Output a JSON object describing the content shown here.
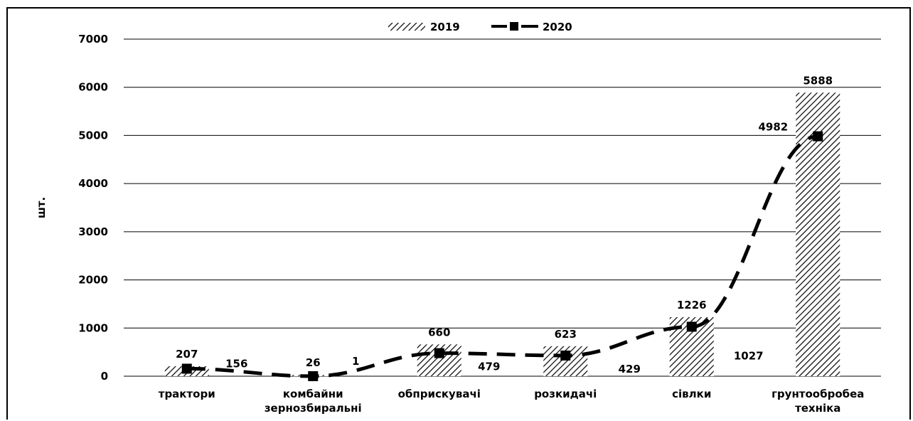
{
  "chart_data": {
    "type": "bar",
    "categories": [
      [
        "трактори"
      ],
      [
        "комбайни",
        "зернозбиральні"
      ],
      [
        "обприскувачі"
      ],
      [
        "розкидачі"
      ],
      [
        "сівлки"
      ],
      [
        "грунтообробеа",
        "техніка"
      ]
    ],
    "series": [
      {
        "name": "2019",
        "type": "bar",
        "pattern": "hatched",
        "values": [
          207,
          26,
          660,
          623,
          1226,
          5888
        ]
      },
      {
        "name": "2020",
        "type": "line",
        "style": "dashed",
        "marker": "square",
        "values": [
          156,
          1,
          479,
          429,
          1027,
          4982
        ]
      }
    ],
    "ylabel": "шт.",
    "xlabel": "",
    "ylim": [
      0,
      7000
    ],
    "yticks": [
      0,
      1000,
      2000,
      3000,
      4000,
      5000,
      6000,
      7000
    ],
    "grid": true,
    "legend": "top-center",
    "colors": {
      "bar_hatch": "#000000",
      "line": "#000000",
      "grid": "#000000"
    }
  }
}
